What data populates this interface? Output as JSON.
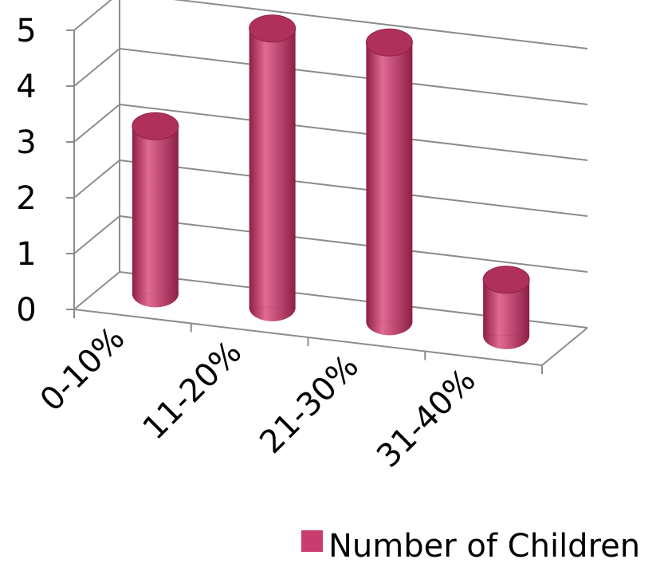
{
  "chart_data": {
    "type": "bar",
    "style": "3d-cylinder",
    "categories": [
      "0-10%",
      "11-20%",
      "21-30%",
      "31-40%"
    ],
    "series": [
      {
        "name": "Number of Children",
        "values": [
          3,
          5,
          5,
          1
        ]
      }
    ],
    "ylim": [
      0,
      5
    ],
    "yticks": [
      "0",
      "1",
      "2",
      "3",
      "4",
      "5"
    ],
    "grid": true,
    "legend": {
      "position": "bottom-right",
      "entries": [
        "Number of Children"
      ]
    },
    "colors": {
      "bar": "#c93d6e",
      "bar_dark": "#8e1f47",
      "bar_light": "#e06a93",
      "top": "#b0305c",
      "grid": "#8c8c8c"
    }
  }
}
